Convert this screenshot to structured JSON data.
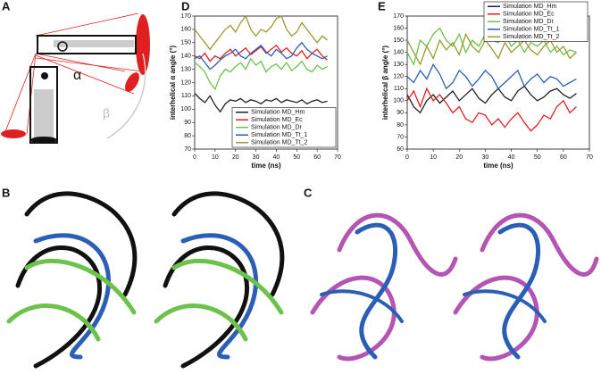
{
  "panel_labels": [
    "A",
    "B",
    "C",
    "D",
    "E"
  ],
  "diagram": {
    "alpha": "α",
    "beta": "β"
  },
  "chart_data": [
    {
      "type": "line",
      "xlabel": "time (ns)",
      "ylabel": "interhelical α angle (°)",
      "x": [
        0,
        2.5,
        5,
        7.5,
        10,
        12.5,
        15,
        17.5,
        20,
        22.5,
        25,
        27.5,
        30,
        32.5,
        35,
        37.5,
        40,
        42.5,
        45,
        47.5,
        50,
        52.5,
        55,
        57.5,
        60,
        62.5,
        65
      ],
      "xlim": [
        0,
        70
      ],
      "xticks": [
        0,
        10,
        20,
        30,
        40,
        50,
        60,
        70
      ],
      "ylim": [
        70,
        170
      ],
      "yticks": [
        70,
        80,
        90,
        100,
        110,
        120,
        130,
        140,
        150,
        160,
        170
      ],
      "legend": "lower right",
      "series": [
        {
          "name": "Simulation MD_Hm",
          "color": "#222222",
          "values": [
            112,
            108,
            105,
            110,
            103,
            98,
            104,
            107,
            106,
            108,
            105,
            107,
            106,
            104,
            107,
            106,
            108,
            105,
            107,
            106,
            105,
            107,
            104,
            106,
            107,
            105,
            106
          ]
        },
        {
          "name": "Simulation MD_Ec",
          "color": "#e02020",
          "values": [
            140,
            138,
            142,
            136,
            140,
            138,
            142,
            145,
            140,
            143,
            146,
            141,
            144,
            147,
            142,
            145,
            148,
            143,
            146,
            142,
            140,
            144,
            138,
            142,
            145,
            140,
            137
          ]
        },
        {
          "name": "Simulation MD_Dr",
          "color": "#6cc24a",
          "values": [
            135,
            132,
            128,
            120,
            115,
            125,
            130,
            128,
            132,
            135,
            130,
            138,
            133,
            136,
            128,
            132,
            134,
            130,
            135,
            129,
            132,
            136,
            130,
            128,
            133,
            130,
            132
          ]
        },
        {
          "name": "Simulation MD_Tt_1",
          "color": "#2a5fb5",
          "values": [
            138,
            140,
            135,
            130,
            133,
            137,
            140,
            142,
            145,
            140,
            138,
            142,
            145,
            148,
            143,
            140,
            145,
            142,
            138,
            140,
            146,
            150,
            145,
            142,
            140,
            138,
            140
          ]
        },
        {
          "name": "Simulation MD_Tt_2",
          "color": "#9a9a30",
          "values": [
            160,
            155,
            150,
            145,
            150,
            155,
            160,
            163,
            158,
            165,
            170,
            160,
            155,
            160,
            158,
            162,
            168,
            170,
            160,
            155,
            158,
            165,
            160,
            155,
            150,
            155,
            152
          ]
        }
      ]
    },
    {
      "type": "line",
      "xlabel": "time (ns)",
      "ylabel": "interhelical β angle (°)",
      "x": [
        0,
        2.5,
        5,
        7.5,
        10,
        12.5,
        15,
        17.5,
        20,
        22.5,
        25,
        27.5,
        30,
        32.5,
        35,
        37.5,
        40,
        42.5,
        45,
        47.5,
        50,
        52.5,
        55,
        57.5,
        60,
        62.5,
        65
      ],
      "xlim": [
        0,
        70
      ],
      "xticks": [
        0,
        10,
        20,
        30,
        40,
        50,
        60,
        70
      ],
      "ylim": [
        60,
        170
      ],
      "yticks": [
        60,
        70,
        80,
        90,
        100,
        110,
        120,
        130,
        140,
        150,
        160,
        170
      ],
      "legend": "upper right",
      "series": [
        {
          "name": "Simulation MD_Hm",
          "color": "#222222",
          "values": [
            105,
            95,
            90,
            100,
            105,
            98,
            103,
            108,
            100,
            105,
            110,
            102,
            98,
            105,
            110,
            103,
            100,
            108,
            112,
            105,
            100,
            103,
            108,
            110,
            105,
            102,
            106
          ]
        },
        {
          "name": "Simulation MD_Ec",
          "color": "#e02020",
          "values": [
            100,
            108,
            95,
            110,
            100,
            105,
            98,
            90,
            95,
            85,
            82,
            90,
            88,
            80,
            85,
            78,
            85,
            90,
            82,
            75,
            80,
            88,
            85,
            95,
            100,
            90,
            95
          ]
        },
        {
          "name": "Simulation MD_Dr",
          "color": "#6cc24a",
          "values": [
            140,
            130,
            150,
            145,
            155,
            160,
            150,
            145,
            155,
            140,
            150,
            145,
            155,
            150,
            148,
            155,
            145,
            150,
            140,
            148,
            145,
            150,
            140,
            145,
            138,
            142,
            140
          ]
        },
        {
          "name": "Simulation MD_Tt_1",
          "color": "#2a5fb5",
          "values": [
            120,
            115,
            125,
            118,
            130,
            122,
            110,
            115,
            125,
            120,
            112,
            118,
            125,
            120,
            110,
            115,
            120,
            125,
            112,
            118,
            122,
            115,
            120,
            118,
            112,
            115,
            118
          ]
        },
        {
          "name": "Simulation MD_Tt_2",
          "color": "#9a9a30",
          "values": [
            150,
            140,
            130,
            145,
            135,
            150,
            142,
            148,
            138,
            155,
            145,
            140,
            150,
            143,
            135,
            148,
            140,
            145,
            150,
            142,
            138,
            145,
            150,
            140,
            145,
            135,
            140
          ]
        }
      ]
    }
  ]
}
